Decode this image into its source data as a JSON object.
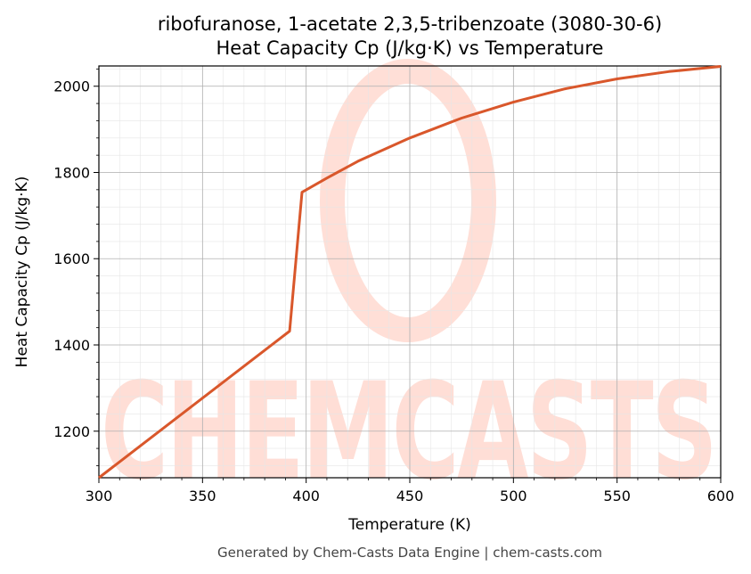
{
  "title_line1": "ribofuranose, 1-acetate 2,3,5-tribenzoate (3080-30-6)",
  "title_line2": "Heat Capacity Cp (J/kg·K) vs Temperature",
  "footer": "Generated by Chem-Casts Data Engine | chem-casts.com",
  "watermark": "CHEMCASTS",
  "colors": {
    "line": "#d9572b",
    "grid_major": "#b0b0b0",
    "grid_minor": "#e6e6e6",
    "watermark": "#ffd9d0"
  },
  "chart_data": {
    "type": "line",
    "xlabel": "Temperature (K)",
    "ylabel": "Heat Capacity Cp (J/kg·K)",
    "xlim": [
      300,
      600
    ],
    "ylim": [
      1092,
      2047
    ],
    "xticks": [
      300,
      350,
      400,
      450,
      500,
      550,
      600
    ],
    "yticks": [
      1200,
      1400,
      1600,
      1800,
      2000
    ],
    "grid": true,
    "series": [
      {
        "x": [
          300,
          392,
          398,
          410,
          425,
          450,
          475,
          500,
          525,
          550,
          575,
          600
        ],
        "y": [
          1092,
          1432,
          1754,
          1787,
          1826,
          1880,
          1926,
          1963,
          1994,
          2017,
          2034,
          2046
        ]
      }
    ]
  }
}
